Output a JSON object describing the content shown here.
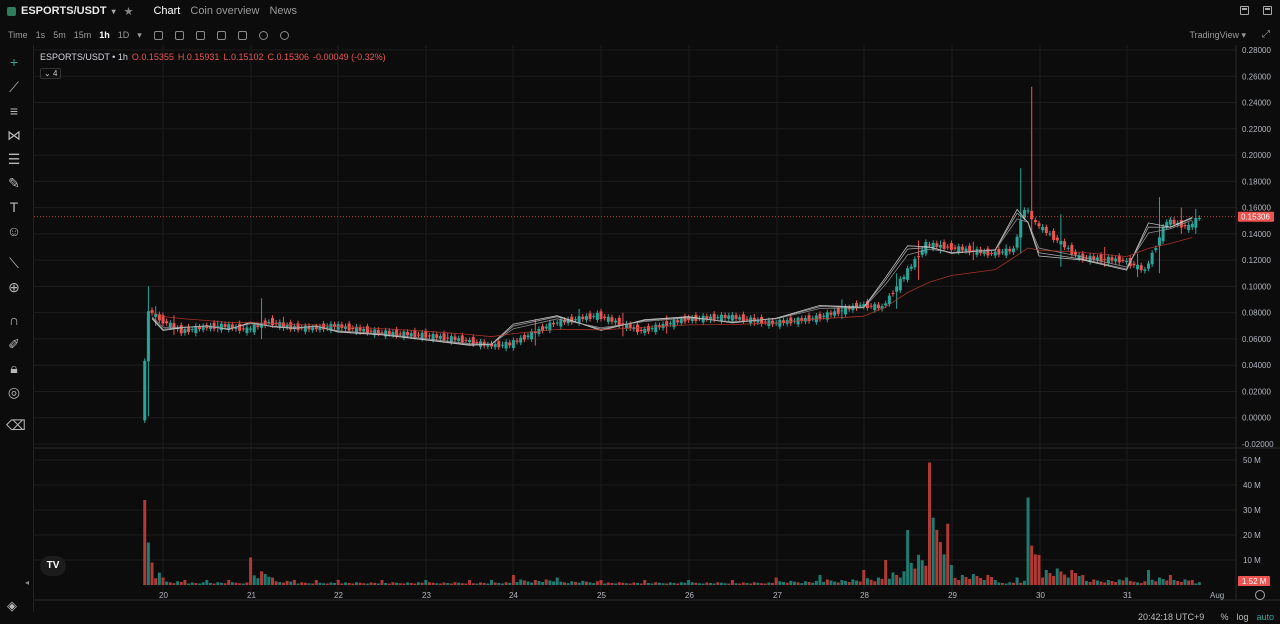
{
  "header": {
    "pair": "ESPORTS/USDT",
    "tabs": [
      "Chart",
      "Coin overview",
      "News"
    ],
    "active_tab": "Chart"
  },
  "toolbar": {
    "label": "Time",
    "intervals": [
      "1s",
      "5m",
      "15m",
      "1h",
      "1D"
    ],
    "active_interval": "1h",
    "brand": "TradingView"
  },
  "legend": {
    "symbol": "ESPORTS/USDT • 1h",
    "open": "O.0.15355",
    "high": "H.0.15931",
    "low": "L.0.15102",
    "close": "C.0.15306",
    "change": "-0.00049 (-0.32%)",
    "indicator_badge": "4"
  },
  "price_axis": {
    "labels": [
      "0.28000",
      "0.26000",
      "0.24000",
      "0.22000",
      "0.20000",
      "0.18000",
      "0.16000",
      "0.14000",
      "0.12000",
      "0.10000",
      "0.08000",
      "0.06000",
      "0.04000",
      "0.02000",
      "0.00000",
      "-0.02000"
    ],
    "current_price": "0.15306"
  },
  "volume_axis": {
    "labels": [
      "50 M",
      "40 M",
      "30 M",
      "20 M",
      "10 M"
    ],
    "current_volume": "1.52 M"
  },
  "time_axis": {
    "labels": [
      "20",
      "21",
      "22",
      "23",
      "24",
      "25",
      "26",
      "27",
      "28",
      "29",
      "30",
      "31",
      "Aug"
    ]
  },
  "footer": {
    "clock": "20:42:18 UTC+9",
    "percent": "%",
    "log": "log",
    "auto": "auto",
    "tv_logo": "TV"
  },
  "colors": {
    "up": "#26a69a",
    "down": "#ef5350",
    "background": "#0c0c0c",
    "grid": "#1c1c1c"
  },
  "chart_data": {
    "type": "candlestick",
    "title": "",
    "candles": [
      {
        "x": "19 19:00",
        "o": 0.001,
        "h": 0.1,
        "l": 0.001,
        "c": 0.082
      },
      {
        "x": "19 21:00",
        "o": 0.082,
        "h": 0.085,
        "l": 0.07,
        "c": 0.075
      },
      {
        "x": "20 00:00",
        "o": 0.075,
        "h": 0.078,
        "l": 0.063,
        "c": 0.066
      },
      {
        "x": "20 06:00",
        "o": 0.066,
        "h": 0.072,
        "l": 0.062,
        "c": 0.069
      },
      {
        "x": "20 12:00",
        "o": 0.069,
        "h": 0.074,
        "l": 0.065,
        "c": 0.07
      },
      {
        "x": "20 18:00",
        "o": 0.07,
        "h": 0.074,
        "l": 0.064,
        "c": 0.067
      },
      {
        "x": "21 00:00",
        "o": 0.067,
        "h": 0.091,
        "l": 0.06,
        "c": 0.073
      },
      {
        "x": "21 06:00",
        "o": 0.073,
        "h": 0.077,
        "l": 0.066,
        "c": 0.069
      },
      {
        "x": "21 12:00",
        "o": 0.069,
        "h": 0.072,
        "l": 0.064,
        "c": 0.068
      },
      {
        "x": "21 18:00",
        "o": 0.068,
        "h": 0.072,
        "l": 0.066,
        "c": 0.07
      },
      {
        "x": "22 00:00",
        "o": 0.07,
        "h": 0.071,
        "l": 0.063,
        "c": 0.065
      },
      {
        "x": "22 12:00",
        "o": 0.065,
        "h": 0.067,
        "l": 0.061,
        "c": 0.063
      },
      {
        "x": "23 00:00",
        "o": 0.063,
        "h": 0.065,
        "l": 0.057,
        "c": 0.059
      },
      {
        "x": "23 12:00",
        "o": 0.059,
        "h": 0.06,
        "l": 0.052,
        "c": 0.055
      },
      {
        "x": "23 18:00",
        "o": 0.055,
        "h": 0.058,
        "l": 0.053,
        "c": 0.056
      },
      {
        "x": "24 00:00",
        "o": 0.056,
        "h": 0.075,
        "l": 0.055,
        "c": 0.072
      },
      {
        "x": "24 12:00",
        "o": 0.072,
        "h": 0.083,
        "l": 0.07,
        "c": 0.078
      },
      {
        "x": "25 00:00",
        "o": 0.078,
        "h": 0.08,
        "l": 0.062,
        "c": 0.066
      },
      {
        "x": "25 12:00",
        "o": 0.066,
        "h": 0.078,
        "l": 0.064,
        "c": 0.075
      },
      {
        "x": "26 00:00",
        "o": 0.075,
        "h": 0.079,
        "l": 0.072,
        "c": 0.077
      },
      {
        "x": "26 12:00",
        "o": 0.077,
        "h": 0.079,
        "l": 0.07,
        "c": 0.072
      },
      {
        "x": "27 00:00",
        "o": 0.072,
        "h": 0.077,
        "l": 0.071,
        "c": 0.076
      },
      {
        "x": "27 12:00",
        "o": 0.076,
        "h": 0.09,
        "l": 0.075,
        "c": 0.086
      },
      {
        "x": "28 00:00",
        "o": 0.086,
        "h": 0.088,
        "l": 0.08,
        "c": 0.084
      },
      {
        "x": "28 06:00",
        "o": 0.084,
        "h": 0.11,
        "l": 0.083,
        "c": 0.108
      },
      {
        "x": "28 12:00",
        "o": 0.108,
        "h": 0.135,
        "l": 0.105,
        "c": 0.132
      },
      {
        "x": "28 18:00",
        "o": 0.132,
        "h": 0.135,
        "l": 0.125,
        "c": 0.13
      },
      {
        "x": "29 00:00",
        "o": 0.13,
        "h": 0.134,
        "l": 0.12,
        "c": 0.125
      },
      {
        "x": "29 12:00",
        "o": 0.125,
        "h": 0.132,
        "l": 0.122,
        "c": 0.128
      },
      {
        "x": "29 18:00",
        "o": 0.128,
        "h": 0.19,
        "l": 0.125,
        "c": 0.16
      },
      {
        "x": "29 21:00",
        "o": 0.16,
        "h": 0.252,
        "l": 0.14,
        "c": 0.148
      },
      {
        "x": "30 00:00",
        "o": 0.148,
        "h": 0.155,
        "l": 0.115,
        "c": 0.122
      },
      {
        "x": "30 12:00",
        "o": 0.122,
        "h": 0.13,
        "l": 0.115,
        "c": 0.12
      },
      {
        "x": "31 00:00",
        "o": 0.12,
        "h": 0.125,
        "l": 0.107,
        "c": 0.112
      },
      {
        "x": "31 06:00",
        "o": 0.112,
        "h": 0.168,
        "l": 0.11,
        "c": 0.15
      },
      {
        "x": "31 12:00",
        "o": 0.15,
        "h": 0.16,
        "l": 0.14,
        "c": 0.145
      },
      {
        "x": "31 18:00",
        "o": 0.145,
        "h": 0.159,
        "l": 0.14,
        "c": 0.153
      }
    ],
    "volume": [
      34,
      9,
      3,
      2,
      2,
      2,
      11,
      3,
      2,
      2,
      2,
      2,
      2,
      2,
      2,
      4,
      3,
      2,
      2,
      2,
      2,
      3,
      4,
      6,
      10,
      22,
      49,
      8,
      2,
      3,
      35,
      12,
      4,
      3,
      6,
      4,
      2
    ],
    "ylim": [
      -0.02,
      0.28
    ],
    "volume_ylim": [
      0,
      50
    ]
  }
}
